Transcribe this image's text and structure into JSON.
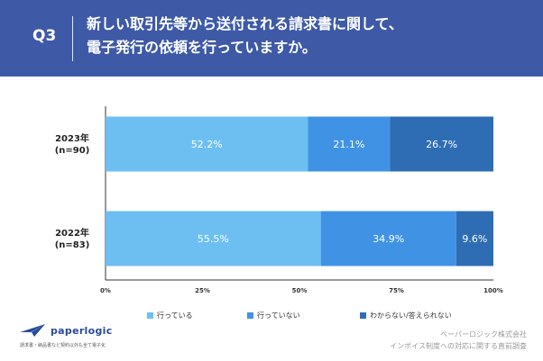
{
  "header": {
    "question_label": "Q3",
    "title_line1": "新しい取引先等から送付される請求書に関して、",
    "title_line2": "電子発行の依頼を行っていますか。"
  },
  "chart_data": {
    "type": "bar",
    "orientation": "horizontal",
    "stacked": true,
    "categories": [
      "2023年\n(n=90)",
      "2022年\n(n=83)"
    ],
    "category_lines": [
      [
        "2023年",
        "(n=90)"
      ],
      [
        "2022年",
        "(n=83)"
      ]
    ],
    "series": [
      {
        "name": "行っている",
        "values": [
          52.2,
          55.5
        ],
        "labels": [
          "52.2%",
          "55.5%"
        ],
        "color": "#6dbff2"
      },
      {
        "name": "行っていない",
        "values": [
          21.1,
          34.9
        ],
        "labels": [
          "21.1%",
          "34.9%"
        ],
        "color": "#4093e4"
      },
      {
        "name": "わからない/答えられない",
        "values": [
          26.7,
          9.6
        ],
        "labels": [
          "26.7%",
          "9.6%"
        ],
        "color": "#2e6db4"
      }
    ],
    "xlim": [
      0,
      100
    ],
    "xticks": [
      "0%",
      "25%",
      "50%",
      "75%",
      "100%"
    ],
    "grid": false,
    "legend_position": "bottom"
  },
  "legend": [
    {
      "label": "行っている",
      "color": "#6dbff2"
    },
    {
      "label": "行っていない",
      "color": "#4093e4"
    },
    {
      "label": "わからない/答えられない",
      "color": "#2e6db4"
    }
  ],
  "logo": {
    "name": "paperlogic",
    "tagline": "請求書・納品書など契約以外も全て電子化"
  },
  "footer": {
    "line1": "ペーパーロジック株式会社",
    "line2": "インボイス制度への対応に関する直前調査"
  },
  "colors": {
    "header_bg": "#3e5aa6",
    "text_white": "#ffffff",
    "brand": "#2b4a9b"
  }
}
